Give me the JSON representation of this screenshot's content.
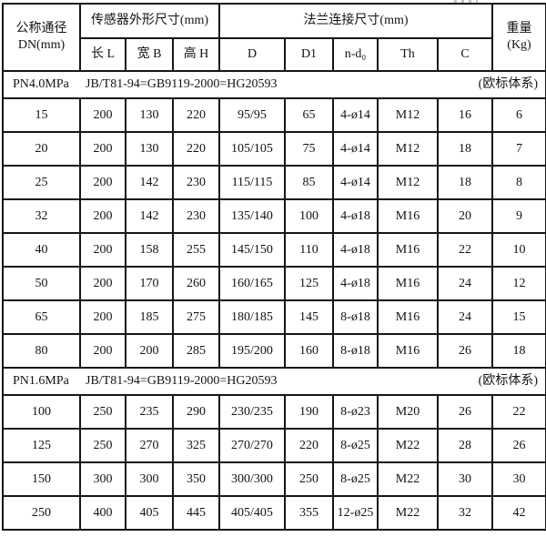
{
  "table": {
    "header": {
      "dn_line1": "公称通径",
      "dn_line2": "DN(mm)",
      "sensor_group": "传感器外形尺寸(mm)",
      "flange_group": "法兰连接尺寸(mm)",
      "weight_line1": "重量",
      "weight_line2": "(Kg)",
      "sub_columns": [
        "长 L",
        "宽 B",
        "高 H",
        "D",
        "D1",
        "n-d₀",
        "Th",
        "C"
      ]
    },
    "sections": [
      {
        "pressure": "PN4.0MPa",
        "standard": "JB/T81-94=GB9119-2000=HG20593",
        "note": "(欧标体系)",
        "rows": [
          [
            "15",
            "200",
            "130",
            "220",
            "95/95",
            "65",
            "4-ø14",
            "M12",
            "16",
            "6"
          ],
          [
            "20",
            "200",
            "130",
            "220",
            "105/105",
            "75",
            "4-ø14",
            "M12",
            "18",
            "7"
          ],
          [
            "25",
            "200",
            "142",
            "230",
            "115/115",
            "85",
            "4-ø14",
            "M12",
            "18",
            "8"
          ],
          [
            "32",
            "200",
            "142",
            "230",
            "135/140",
            "100",
            "4-ø18",
            "M16",
            "20",
            "9"
          ],
          [
            "40",
            "200",
            "158",
            "255",
            "145/150",
            "110",
            "4-ø18",
            "M16",
            "22",
            "10"
          ],
          [
            "50",
            "200",
            "170",
            "260",
            "160/165",
            "125",
            "4-ø18",
            "M16",
            "24",
            "12"
          ],
          [
            "65",
            "200",
            "185",
            "275",
            "180/185",
            "145",
            "8-ø18",
            "M16",
            "24",
            "15"
          ],
          [
            "80",
            "200",
            "200",
            "285",
            "195/200",
            "160",
            "8-ø18",
            "M16",
            "26",
            "18"
          ]
        ]
      },
      {
        "pressure": "PN1.6MPa",
        "standard": "JB/T81-94=GB9119-2000=HG20593",
        "note": "(欧标体系)",
        "rows": [
          [
            "100",
            "250",
            "235",
            "290",
            "230/235",
            "190",
            "8-ø23",
            "M20",
            "26",
            "22"
          ],
          [
            "125",
            "250",
            "270",
            "325",
            "270/270",
            "220",
            "8-ø25",
            "M22",
            "28",
            "26"
          ],
          [
            "150",
            "300",
            "300",
            "350",
            "300/300",
            "250",
            "8-ø25",
            "M22",
            "30",
            "30"
          ],
          [
            "250",
            "400",
            "405",
            "445",
            "405/405",
            "355",
            "12-ø25",
            "M22",
            "32",
            "42"
          ]
        ]
      }
    ],
    "column_keys": [
      "dn",
      "length-l",
      "width-b",
      "height-h",
      "d",
      "d1",
      "n-d0",
      "th",
      "c",
      "weight-kg"
    ]
  },
  "colors": {
    "border": "#161616",
    "text": "#131313",
    "background": "#ffffff"
  }
}
